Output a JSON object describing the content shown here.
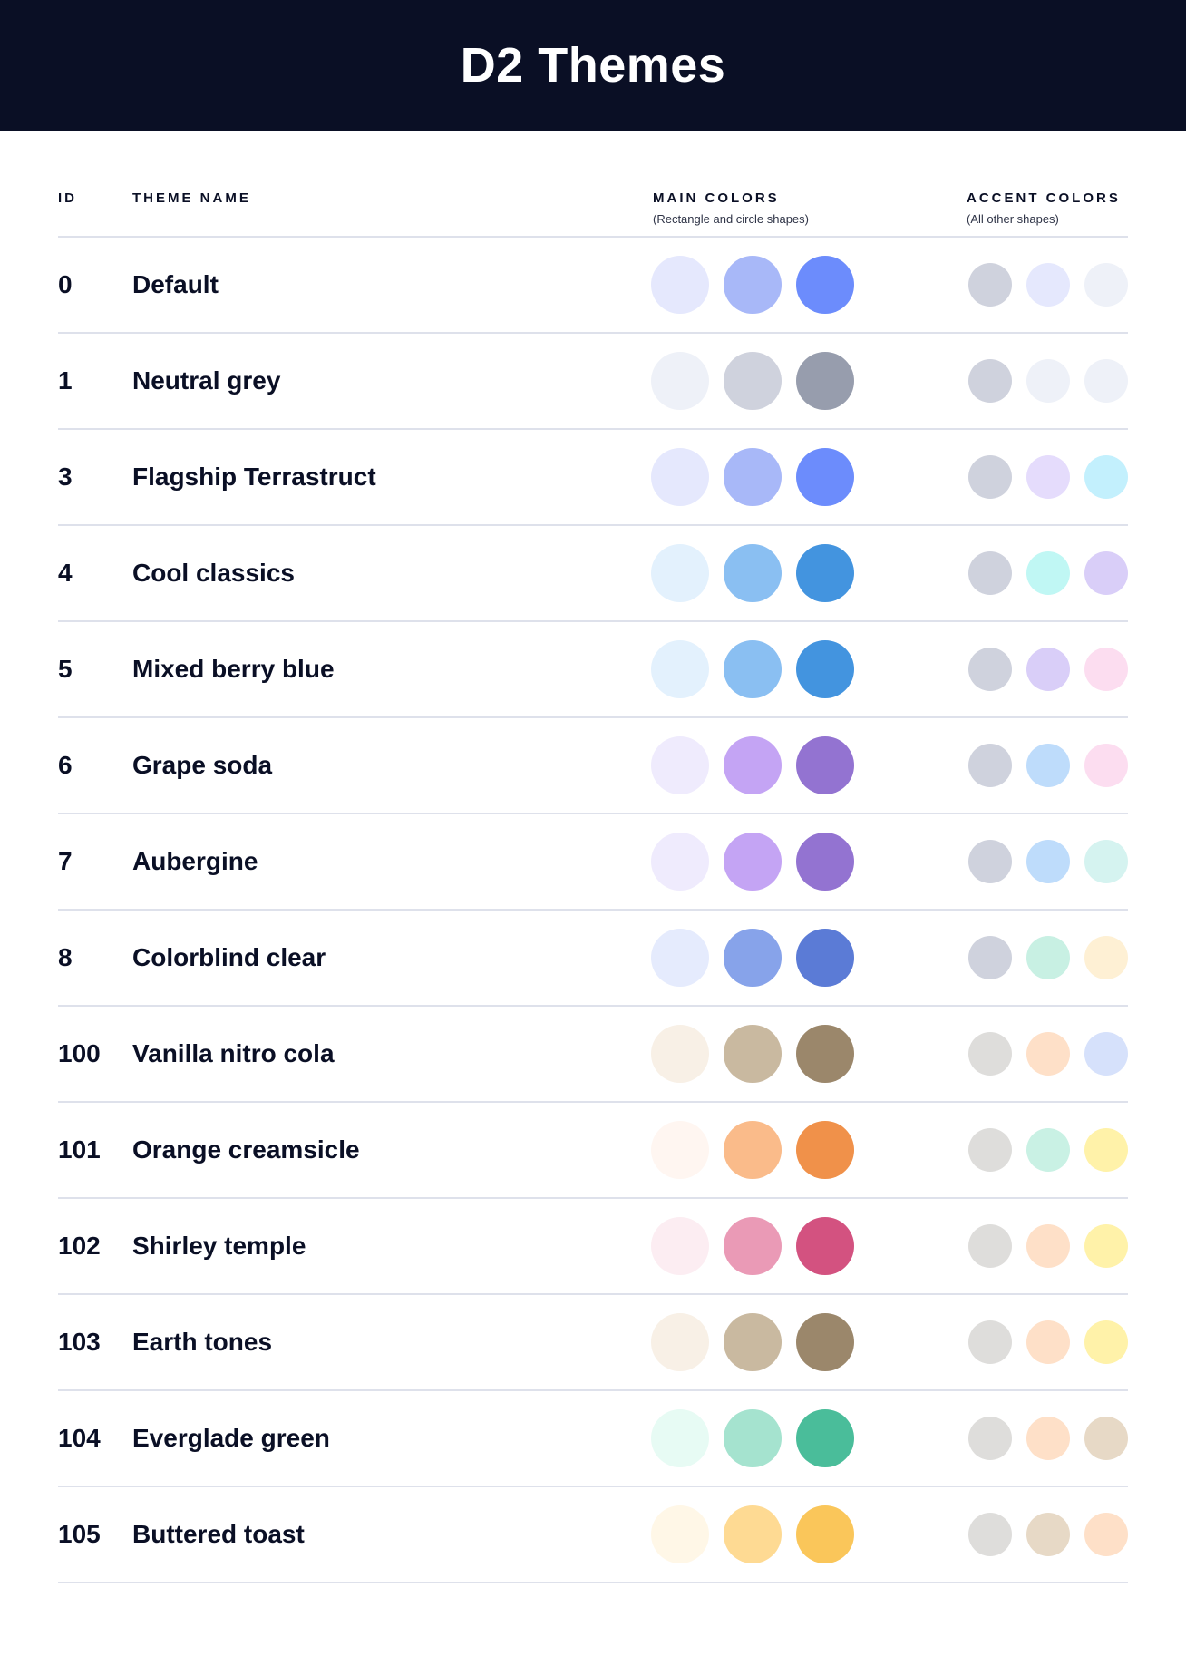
{
  "title": "D2 Themes",
  "columns": {
    "id": "ID",
    "name": "THEME NAME",
    "main": "MAIN COLORS",
    "main_sub": "(Rectangle and circle shapes)",
    "accent": "ACCENT COLORS",
    "accent_sub": "(All other shapes)"
  },
  "themes": [
    {
      "id": "0",
      "name": "Default",
      "main": [
        "#E5E8FD",
        "#A8B8F8",
        "#6C8CFC"
      ],
      "accent": [
        "#CFD2DD",
        "#E5E8FD",
        "#EEF1F8"
      ]
    },
    {
      "id": "1",
      "name": "Neutral grey",
      "main": [
        "#EEF1F8",
        "#CFD2DD",
        "#979DAD"
      ],
      "accent": [
        "#CFD2DD",
        "#EEF1F8",
        "#EEF1F8"
      ]
    },
    {
      "id": "3",
      "name": "Flagship Terrastruct",
      "main": [
        "#E5E8FD",
        "#A8B8F8",
        "#6C8CFC"
      ],
      "accent": [
        "#CFD2DD",
        "#E5DCFC",
        "#C3F0FD"
      ]
    },
    {
      "id": "4",
      "name": "Cool classics",
      "main": [
        "#E3F1FD",
        "#8ABFF2",
        "#4394DF"
      ],
      "accent": [
        "#CFD2DD",
        "#C0F7F4",
        "#D9CEF8"
      ]
    },
    {
      "id": "5",
      "name": "Mixed berry blue",
      "main": [
        "#E3F1FD",
        "#8ABFF2",
        "#4394DF"
      ],
      "accent": [
        "#CFD2DD",
        "#D9CEF8",
        "#FCDDF0"
      ]
    },
    {
      "id": "6",
      "name": "Grape soda",
      "main": [
        "#EFEBFD",
        "#C4A4F4",
        "#9373D1"
      ],
      "accent": [
        "#CFD2DD",
        "#BEDCFB",
        "#FCDDF0"
      ]
    },
    {
      "id": "7",
      "name": "Aubergine",
      "main": [
        "#EFEBFD",
        "#C4A4F4",
        "#9373D1"
      ],
      "accent": [
        "#CFD2DD",
        "#BEDCFB",
        "#D5F3F0"
      ]
    },
    {
      "id": "8",
      "name": "Colorblind clear",
      "main": [
        "#E5EBFD",
        "#87A3EA",
        "#5B7BD6"
      ],
      "accent": [
        "#CFD2DD",
        "#C8F0E3",
        "#FEF0D4"
      ]
    },
    {
      "id": "100",
      "name": "Vanilla nitro cola",
      "main": [
        "#F8F0E6",
        "#C9B9A0",
        "#9B876B"
      ],
      "accent": [
        "#DEDDDB",
        "#FEE0C8",
        "#D6E1FB"
      ]
    },
    {
      "id": "101",
      "name": "Orange creamsicle",
      "main": [
        "#FFF6F1",
        "#FABB8A",
        "#F0914A"
      ],
      "accent": [
        "#DEDDDB",
        "#C9F1E4",
        "#FFF2A9"
      ]
    },
    {
      "id": "102",
      "name": "Shirley temple",
      "main": [
        "#FCEDF2",
        "#EA9AB6",
        "#D35280"
      ],
      "accent": [
        "#DEDDDB",
        "#FEE0C8",
        "#FFF2A9"
      ]
    },
    {
      "id": "103",
      "name": "Earth tones",
      "main": [
        "#F8F0E6",
        "#C9B9A0",
        "#9B876B"
      ],
      "accent": [
        "#DEDDDB",
        "#FEE0C8",
        "#FFF2A9"
      ]
    },
    {
      "id": "104",
      "name": "Everglade green",
      "main": [
        "#E7FBF4",
        "#A5E3CF",
        "#4ABD9A"
      ],
      "accent": [
        "#DEDDDB",
        "#FEE0C8",
        "#E7D9C6"
      ]
    },
    {
      "id": "105",
      "name": "Buttered toast",
      "main": [
        "#FFF7E7",
        "#FEDA93",
        "#FAC65A"
      ],
      "accent": [
        "#DEDDDB",
        "#E7D9C6",
        "#FEE0C8"
      ]
    }
  ]
}
